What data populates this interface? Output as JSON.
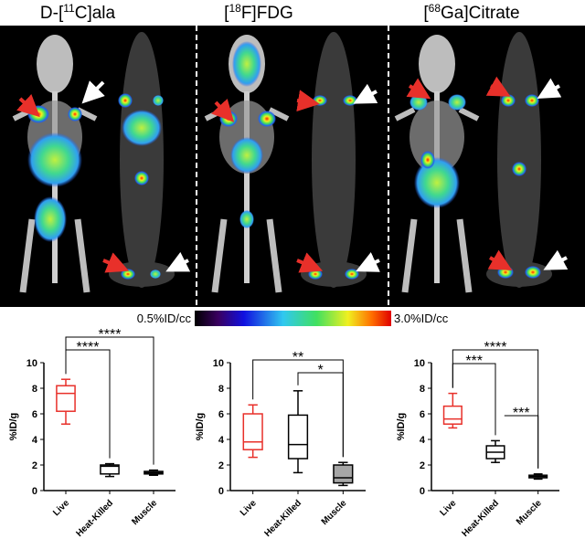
{
  "panels": [
    {
      "title": {
        "prefix": "D-[",
        "sup": "11",
        "suffix": "C]ala"
      }
    },
    {
      "title": {
        "prefix": "[",
        "sup": "18",
        "suffix": "F]FDG"
      }
    },
    {
      "title": {
        "prefix": "[",
        "sup": "68",
        "suffix": "Ga]Citrate"
      }
    }
  ],
  "colorbar": {
    "min_label": "0.5%ID/cc",
    "max_label": "3.0%ID/cc"
  },
  "chart_data": [
    {
      "type": "box",
      "ylabel": "%ID/g",
      "categories": [
        "Live",
        "Heat-Killed",
        "Muscle"
      ],
      "ylim": [
        0,
        10
      ],
      "yticks": [
        0,
        2,
        4,
        6,
        8,
        10
      ],
      "boxes": [
        {
          "color": "#e8302a",
          "fill": "#ffffff",
          "min": 5.2,
          "q1": 6.2,
          "median": 7.6,
          "q3": 8.2,
          "max": 8.7
        },
        {
          "color": "#000000",
          "fill": "#ffffff",
          "min": 1.1,
          "q1": 1.3,
          "median": 1.9,
          "q3": 2.0,
          "max": 2.1
        },
        {
          "color": "#000000",
          "fill": "#ffffff",
          "min": 1.2,
          "q1": 1.3,
          "median": 1.4,
          "q3": 1.5,
          "max": 1.6
        }
      ],
      "significance": [
        "****",
        "****"
      ]
    },
    {
      "type": "box",
      "ylabel": "%ID/g",
      "categories": [
        "Live",
        "Heat-Killed",
        "Muscle"
      ],
      "ylim": [
        0,
        10
      ],
      "yticks": [
        0,
        2,
        4,
        6,
        8,
        10
      ],
      "boxes": [
        {
          "color": "#e8302a",
          "fill": "#ffffff",
          "min": 2.6,
          "q1": 3.2,
          "median": 3.8,
          "q3": 6.0,
          "max": 6.7
        },
        {
          "color": "#000000",
          "fill": "#ffffff",
          "min": 1.4,
          "q1": 2.5,
          "median": 3.6,
          "q3": 5.9,
          "max": 7.8
        },
        {
          "color": "#000000",
          "fill": "#a6a6a6",
          "min": 0.4,
          "q1": 0.6,
          "median": 1.0,
          "q3": 2.0,
          "max": 2.2
        }
      ],
      "significance": [
        "**",
        "*"
      ]
    },
    {
      "type": "box",
      "ylabel": "%ID/g",
      "categories": [
        "Live",
        "Heat-Killed",
        "Muscle"
      ],
      "ylim": [
        0,
        10
      ],
      "yticks": [
        0,
        2,
        4,
        6,
        8,
        10
      ],
      "boxes": [
        {
          "color": "#e8302a",
          "fill": "#ffffff",
          "min": 4.9,
          "q1": 5.2,
          "median": 5.6,
          "q3": 6.6,
          "max": 7.6
        },
        {
          "color": "#000000",
          "fill": "#ffffff",
          "min": 2.2,
          "q1": 2.5,
          "median": 3.0,
          "q3": 3.5,
          "max": 3.9
        },
        {
          "color": "#000000",
          "fill": "#ffffff",
          "min": 0.9,
          "q1": 1.0,
          "median": 1.1,
          "q3": 1.2,
          "max": 1.3
        }
      ],
      "significance": [
        "****",
        "***",
        "***"
      ]
    }
  ]
}
